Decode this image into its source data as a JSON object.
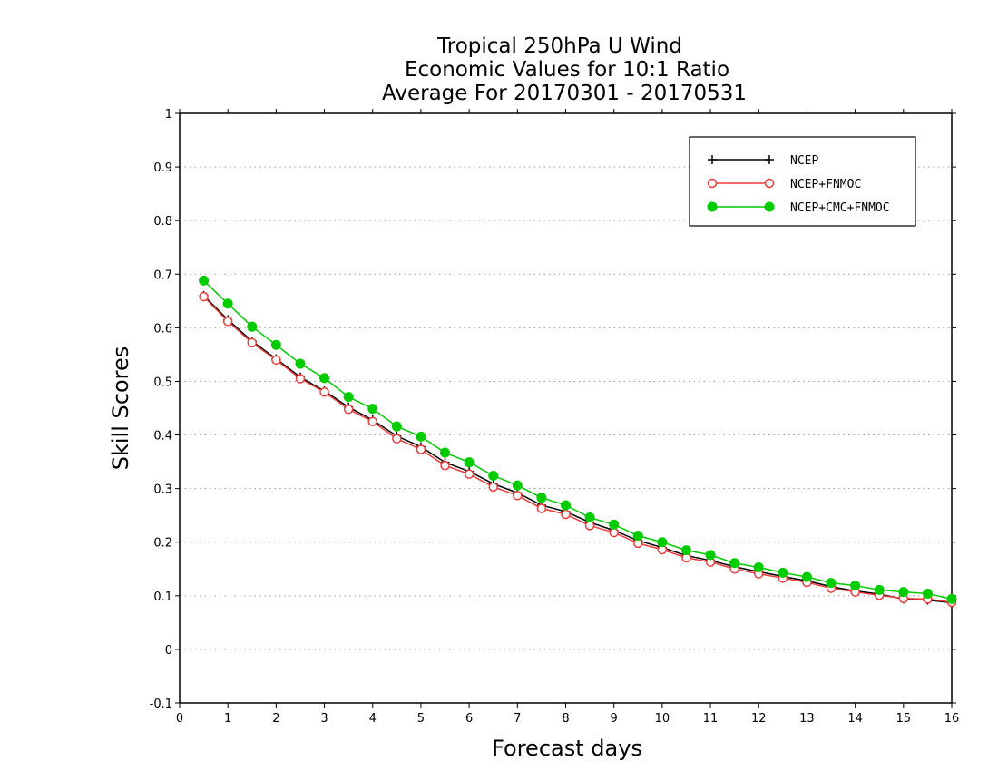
{
  "chart_data": {
    "type": "line",
    "title": [
      "Tropical 250hPa U Wind",
      "Economic Values for 10:1 Ratio",
      "Average For 20170301 - 20170531"
    ],
    "xlabel": "Forecast days",
    "ylabel": "Skill Scores",
    "xlim": [
      0,
      16
    ],
    "ylim": [
      -0.1,
      1
    ],
    "xticks": [
      "0",
      "1",
      "2",
      "3",
      "4",
      "5",
      "6",
      "7",
      "8",
      "9",
      "10",
      "11",
      "12",
      "13",
      "14",
      "15",
      "16"
    ],
    "yticks": [
      "-0.1",
      "0",
      "0.1",
      "0.2",
      "0.3",
      "0.4",
      "0.5",
      "0.6",
      "0.7",
      "0.8",
      "0.9",
      "1"
    ],
    "grid": "horizontal dotted",
    "legend_position": "top-right",
    "x": [
      0.5,
      1,
      1.5,
      2,
      2.5,
      3,
      3.5,
      4,
      4.5,
      5,
      5.5,
      6,
      6.5,
      7,
      7.5,
      8,
      8.5,
      9,
      9.5,
      10,
      10.5,
      11,
      11.5,
      12,
      12.5,
      13,
      13.5,
      14,
      14.5,
      15,
      15.5,
      16
    ],
    "series": [
      {
        "name": "NCEP",
        "color": "#000000",
        "marker": "plus",
        "values": [
          0.66,
          0.615,
          0.575,
          0.542,
          0.508,
          0.482,
          0.452,
          0.428,
          0.398,
          0.378,
          0.349,
          0.332,
          0.309,
          0.292,
          0.269,
          0.257,
          0.237,
          0.222,
          0.203,
          0.19,
          0.175,
          0.166,
          0.154,
          0.145,
          0.136,
          0.128,
          0.117,
          0.109,
          0.103,
          0.094,
          0.092,
          0.087
        ]
      },
      {
        "name": "NCEP+FNMOC",
        "color": "#ee3b3b",
        "marker": "open-circle",
        "values": [
          0.658,
          0.612,
          0.572,
          0.54,
          0.505,
          0.48,
          0.448,
          0.425,
          0.393,
          0.373,
          0.343,
          0.327,
          0.303,
          0.287,
          0.263,
          0.252,
          0.231,
          0.218,
          0.198,
          0.186,
          0.171,
          0.163,
          0.15,
          0.141,
          0.133,
          0.125,
          0.114,
          0.107,
          0.101,
          0.095,
          0.094,
          0.088
        ]
      },
      {
        "name": "NCEP+CMC+FNMOC",
        "color": "#00cc00",
        "marker": "filled-circle",
        "values": [
          0.688,
          0.645,
          0.602,
          0.568,
          0.533,
          0.506,
          0.471,
          0.449,
          0.416,
          0.397,
          0.367,
          0.349,
          0.324,
          0.306,
          0.283,
          0.269,
          0.246,
          0.233,
          0.212,
          0.2,
          0.185,
          0.176,
          0.161,
          0.153,
          0.143,
          0.135,
          0.124,
          0.119,
          0.111,
          0.107,
          0.104,
          0.094
        ]
      }
    ]
  }
}
